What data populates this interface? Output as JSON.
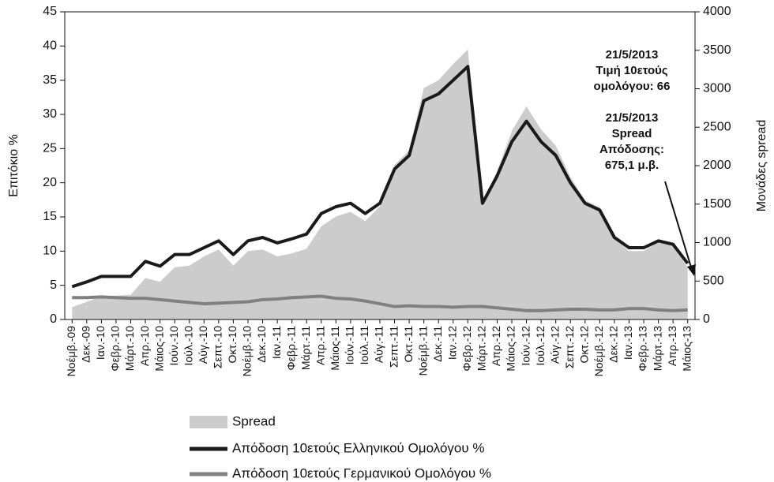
{
  "chart_data": {
    "type": "line",
    "ylabel": "Επιτόκιο %",
    "y2label": "Μονάδες spread",
    "categories": [
      "Νοέμβ.-09",
      "Δεκ.-09",
      "Ιαν.-10",
      "Φεβρ.-10",
      "Μάρτ.-10",
      "Απρ.-10",
      "Μάιος-10",
      "Ιούν.-10",
      "Ιούλ.-10",
      "Αύγ.-10",
      "Σεπτ.-10",
      "Οκτ.-10",
      "Νοέμβ.-10",
      "Δεκ.-10",
      "Ιαν.-11",
      "Φεβρ.-11",
      "Μάρτ.-11",
      "Απρ.-11",
      "Μάιος-11",
      "Ιούν.-11",
      "Ιούλ.-11",
      "Αύγ.-11",
      "Σεπτ.-11",
      "Οκτ.-11",
      "Νοέμβ.-11",
      "Δεκ.-11",
      "Ιαν.-12",
      "Φεβρ.-12",
      "Μάρτ.-12",
      "Απρ.-12",
      "Μάιος-12",
      "Ιούν.-12",
      "Ιούλ.-12",
      "Αύγ.-12",
      "Σεπτ.-12",
      "Οκτ.-12",
      "Νοέμβ.-12",
      "Δεκ.-12",
      "Ιαν.-13",
      "Φεβρ.-13",
      "Μάρτ.-13",
      "Απρ.-13",
      "Μάιος-13"
    ],
    "series": [
      {
        "name": "Spread",
        "color": "#cccccc",
        "axis": "y2",
        "style": "area",
        "values": [
          160,
          230,
          300,
          310,
          320,
          540,
          490,
          680,
          700,
          820,
          910,
          700,
          890,
          910,
          820,
          860,
          920,
          1210,
          1340,
          1400,
          1280,
          1470,
          2010,
          2200,
          3010,
          3110,
          3320,
          3510,
          1510,
          1930,
          2450,
          2770,
          2470,
          2260,
          1850,
          1550,
          1460,
          1060,
          890,
          890,
          1010,
          970,
          675
        ]
      },
      {
        "name": "Απόδοση 10ετούς Ελληνικού Ομολόγου %",
        "color": "#1a1a1a",
        "axis": "y",
        "values": [
          4.8,
          5.5,
          6.3,
          6.3,
          6.3,
          8.5,
          7.8,
          9.5,
          9.5,
          10.5,
          11.5,
          9.5,
          11.5,
          12,
          11.2,
          11.8,
          12.5,
          15.5,
          16.5,
          17,
          15.5,
          17,
          22,
          24,
          32,
          33,
          35,
          37,
          17,
          21,
          26,
          29,
          26,
          24,
          20,
          17,
          16,
          12,
          10.5,
          10.5,
          11.5,
          11,
          8.2
        ]
      },
      {
        "name": "Απόδοση 10ετούς Γερμανικού Ομολόγου %",
        "color": "#808080",
        "axis": "y",
        "values": [
          3.2,
          3.2,
          3.3,
          3.2,
          3.1,
          3.1,
          2.9,
          2.7,
          2.5,
          2.3,
          2.4,
          2.5,
          2.6,
          2.9,
          3.0,
          3.2,
          3.3,
          3.4,
          3.1,
          3.0,
          2.7,
          2.3,
          1.9,
          2.0,
          1.9,
          1.9,
          1.8,
          1.9,
          1.9,
          1.7,
          1.5,
          1.3,
          1.3,
          1.4,
          1.5,
          1.5,
          1.4,
          1.4,
          1.6,
          1.6,
          1.4,
          1.3,
          1.4
        ]
      }
    ],
    "annotations": [
      {
        "lines": [
          "21/5/2013",
          "Τιμή 10ετούς",
          "ομολόγου: 66"
        ]
      },
      {
        "lines": [
          "21/5/2013",
          "Spread",
          "Απόδοσης:",
          "675,1 μ.β."
        ]
      }
    ],
    "ylim": [
      0,
      45
    ],
    "yticks": [
      0,
      5,
      10,
      15,
      20,
      25,
      30,
      35,
      40,
      45
    ],
    "y2lim": [
      0,
      4000
    ],
    "y2ticks": [
      0,
      500,
      1000,
      1500,
      2000,
      2500,
      3000,
      3500,
      4000
    ]
  }
}
